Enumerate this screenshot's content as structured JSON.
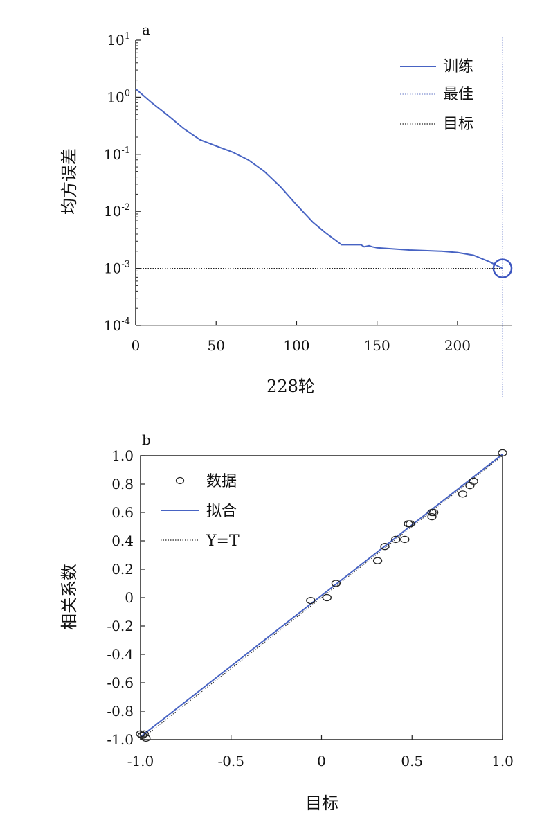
{
  "chart_data": [
    {
      "panel_label": "a",
      "type": "line",
      "yscale": "log",
      "ylabel": "均方误差",
      "xlabel": "228轮",
      "xlim": [
        0,
        228
      ],
      "ylim": [
        0.0001,
        10
      ],
      "x_ticks": [
        0,
        50,
        100,
        150,
        200
      ],
      "y_ticks": [
        {
          "value": 10,
          "base": "10",
          "exp": "1"
        },
        {
          "value": 1,
          "base": "10",
          "exp": "0"
        },
        {
          "value": 0.1,
          "base": "10",
          "exp": "-1"
        },
        {
          "value": 0.01,
          "base": "10",
          "exp": "-2"
        },
        {
          "value": 0.001,
          "base": "10",
          "exp": "-3"
        },
        {
          "value": 0.0001,
          "base": "10",
          "exp": "-4"
        }
      ],
      "legend": [
        {
          "label": "训练",
          "style": "solid",
          "color": "#4763c3"
        },
        {
          "label": "最佳",
          "style": "dotted",
          "color": "#7f8fd0"
        },
        {
          "label": "目标",
          "style": "dotted",
          "color": "#222222"
        }
      ],
      "series": [
        {
          "name": "训练",
          "x": [
            0,
            10,
            20,
            30,
            40,
            50,
            60,
            70,
            80,
            90,
            100,
            110,
            118,
            128,
            140,
            142,
            145,
            147,
            150,
            160,
            170,
            180,
            190,
            200,
            210,
            220,
            228
          ],
          "y": [
            1.4,
            0.8,
            0.48,
            0.28,
            0.18,
            0.14,
            0.11,
            0.08,
            0.05,
            0.027,
            0.013,
            0.0065,
            0.0042,
            0.0026,
            0.0026,
            0.0024,
            0.0025,
            0.0024,
            0.0023,
            0.0022,
            0.0021,
            0.00205,
            0.002,
            0.0019,
            0.0017,
            0.0013,
            0.001
          ]
        }
      ],
      "goal": 0.001,
      "best_epoch": 228,
      "best_value": 0.001
    },
    {
      "panel_label": "b",
      "type": "scatter",
      "ylabel": "相关系数",
      "xlabel": "目标",
      "xlim": [
        -1.0,
        1.0
      ],
      "ylim": [
        -1.0,
        1.0
      ],
      "x_ticks": [
        "-1.0",
        "-0.5",
        "0",
        "0.5",
        "1.0"
      ],
      "x_tick_values": [
        -1.0,
        -0.5,
        0,
        0.5,
        1.0
      ],
      "y_ticks": [
        "1.0",
        "0.8",
        "0.6",
        "0.4",
        "0.2",
        "0",
        "-0.2",
        "-0.4",
        "-0.6",
        "-0.8",
        "-1.0"
      ],
      "y_tick_values": [
        1.0,
        0.8,
        0.6,
        0.4,
        0.2,
        0,
        -0.2,
        -0.4,
        -0.6,
        -0.8,
        -1.0
      ],
      "legend": [
        {
          "label": "数据",
          "style": "circle"
        },
        {
          "label": "拟合",
          "style": "solid",
          "color": "#4763c3"
        },
        {
          "label": "Y=T",
          "style": "dotted",
          "color": "#222222"
        }
      ],
      "fit_line": {
        "x": [
          -1.0,
          1.0
        ],
        "y": [
          -0.98,
          1.01
        ]
      },
      "points": {
        "x": [
          -1.0,
          -0.99,
          -0.98,
          -0.97,
          -0.06,
          0.03,
          0.08,
          0.31,
          0.35,
          0.41,
          0.46,
          0.48,
          0.49,
          0.61,
          0.61,
          0.62,
          0.78,
          0.82,
          0.84,
          1.0
        ],
        "y": [
          -0.96,
          -0.97,
          -0.96,
          -0.99,
          -0.02,
          0.0,
          0.1,
          0.26,
          0.36,
          0.41,
          0.41,
          0.52,
          0.52,
          0.57,
          0.6,
          0.6,
          0.73,
          0.79,
          0.82,
          1.02
        ]
      }
    }
  ]
}
